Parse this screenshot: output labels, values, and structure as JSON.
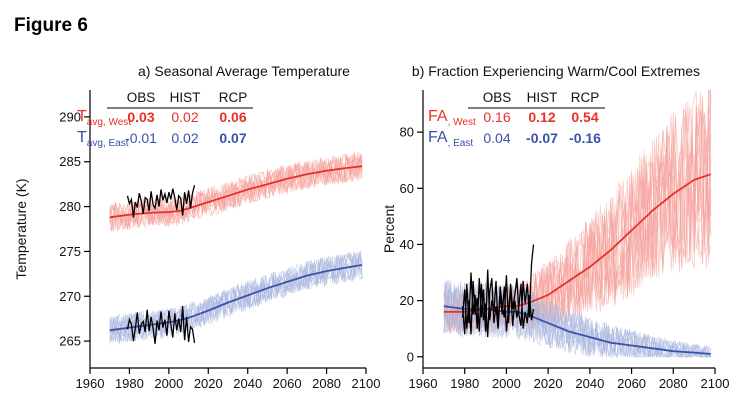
{
  "figure_label": "Figure 6",
  "colors": {
    "west": "#e8302a",
    "east": "#3a52a8",
    "obs": "#000000",
    "west_light": "#f5a09a",
    "east_light": "#a9b6df"
  },
  "chart_data": [
    {
      "type": "line",
      "title": "a) Seasonal Average Temperature",
      "xlabel": "",
      "ylabel": "Temperature (K)",
      "xlim": [
        1960,
        2100
      ],
      "ylim": [
        262,
        293
      ],
      "xticks": [
        1960,
        1980,
        2000,
        2020,
        2040,
        2060,
        2080,
        2100
      ],
      "yticks": [
        265,
        270,
        275,
        280,
        285,
        290
      ],
      "grid": false,
      "table": {
        "headers": [
          "OBS",
          "HIST",
          "RCP"
        ],
        "rows": [
          {
            "label_main": "T",
            "label_sub": "avg, West",
            "color": "west",
            "values": [
              "0.03",
              "0.02",
              "0.06"
            ],
            "bold": [
              true,
              false,
              true
            ]
          },
          {
            "label_main": "T",
            "label_sub": "avg, East",
            "color": "east",
            "values": [
              "-0.01",
              "0.02",
              "0.07"
            ],
            "bold": [
              false,
              false,
              true
            ]
          }
        ]
      },
      "series": [
        {
          "color": "west",
          "style": "ensemble-mean",
          "x": [
            1970,
            1980,
            1990,
            2000,
            2005,
            2010,
            2020,
            2030,
            2040,
            2050,
            2060,
            2070,
            2080,
            2090,
            2098
          ],
          "y": [
            278.8,
            279.1,
            279.3,
            279.4,
            279.5,
            279.8,
            280.5,
            281.2,
            281.9,
            282.5,
            283.1,
            283.6,
            284.0,
            284.3,
            284.5
          ]
        },
        {
          "color": "east",
          "style": "ensemble-mean",
          "x": [
            1970,
            1980,
            1990,
            2000,
            2005,
            2010,
            2020,
            2030,
            2040,
            2050,
            2060,
            2070,
            2080,
            2090,
            2098
          ],
          "y": [
            266.2,
            266.5,
            266.8,
            267.1,
            267.3,
            267.6,
            268.4,
            269.3,
            270.1,
            270.9,
            271.6,
            272.3,
            272.8,
            273.2,
            273.5
          ]
        },
        {
          "color": "obs",
          "style": "observed",
          "x": [
            1979,
            1980,
            1981,
            1982,
            1983,
            1984,
            1985,
            1986,
            1987,
            1988,
            1989,
            1990,
            1991,
            1992,
            1993,
            1994,
            1995,
            1996,
            1997,
            1998,
            1999,
            2000,
            2001,
            2002,
            2003,
            2004,
            2005,
            2006,
            2007,
            2008,
            2009,
            2010,
            2011,
            2012,
            2013
          ],
          "y": [
            281.2,
            280.3,
            280.8,
            278.8,
            280.5,
            279.9,
            281.5,
            280.6,
            279.2,
            281.0,
            280.8,
            279.5,
            281.7,
            280.2,
            279.8,
            281.3,
            280.0,
            281.9,
            280.7,
            281.4,
            280.4,
            281.6,
            280.8,
            282.0,
            281.0,
            279.6,
            281.2,
            280.9,
            279.0,
            281.6,
            280.3,
            281.8,
            279.8,
            281.5,
            282.4
          ]
        },
        {
          "color": "obs",
          "style": "observed",
          "x": [
            1979,
            1980,
            1981,
            1982,
            1983,
            1984,
            1985,
            1986,
            1987,
            1988,
            1989,
            1990,
            1991,
            1992,
            1993,
            1994,
            1995,
            1996,
            1997,
            1998,
            1999,
            2000,
            2001,
            2002,
            2003,
            2004,
            2005,
            2006,
            2007,
            2008,
            2009,
            2010,
            2011,
            2012,
            2013
          ],
          "y": [
            266.3,
            267.4,
            266.9,
            265.0,
            266.4,
            268.2,
            265.8,
            266.9,
            267.2,
            266.0,
            268.5,
            266.1,
            267.7,
            266.4,
            264.7,
            267.3,
            266.2,
            268.3,
            266.5,
            267.4,
            265.6,
            268.4,
            266.9,
            265.4,
            268.1,
            266.2,
            267.5,
            266.0,
            268.9,
            265.1,
            267.7,
            264.9,
            266.6,
            266.3,
            264.8
          ]
        }
      ]
    },
    {
      "type": "line",
      "title": "b) Fraction Experiencing Warm/Cool Extremes",
      "xlabel": "",
      "ylabel": "Percent",
      "xlim": [
        1960,
        2100
      ],
      "ylim": [
        -4,
        95
      ],
      "xticks": [
        1960,
        1980,
        2000,
        2020,
        2040,
        2060,
        2080,
        2100
      ],
      "yticks": [
        0,
        20,
        40,
        60,
        80
      ],
      "grid": false,
      "table": {
        "headers": [
          "OBS",
          "HIST",
          "RCP"
        ],
        "rows": [
          {
            "label_main": "FA",
            "label_sub": ", West",
            "color": "west",
            "values": [
              "0.16",
              "0.12",
              "0.54"
            ],
            "bold": [
              false,
              true,
              true
            ]
          },
          {
            "label_main": "FA",
            "label_sub": ", East",
            "color": "east",
            "values": [
              "0.04",
              "-0.07",
              "-0.16"
            ],
            "bold": [
              false,
              true,
              true
            ]
          }
        ]
      },
      "series": [
        {
          "color": "west",
          "style": "ensemble-mean",
          "x": [
            1970,
            1980,
            1990,
            2000,
            2005,
            2010,
            2020,
            2030,
            2040,
            2050,
            2060,
            2070,
            2080,
            2090,
            2098
          ],
          "y": [
            16,
            16,
            17,
            18,
            18,
            19,
            22,
            27,
            32,
            38,
            45,
            52,
            58,
            63,
            65
          ]
        },
        {
          "color": "east",
          "style": "ensemble-mean",
          "x": [
            1970,
            1980,
            1990,
            2000,
            2005,
            2010,
            2020,
            2030,
            2040,
            2050,
            2060,
            2070,
            2080,
            2090,
            2098
          ],
          "y": [
            18,
            17,
            17,
            16,
            16,
            15,
            12,
            9,
            7,
            5,
            4,
            3,
            2,
            1.5,
            1
          ]
        },
        {
          "color": "obs",
          "style": "observed",
          "x": [
            1979,
            1980,
            1981,
            1982,
            1983,
            1984,
            1985,
            1986,
            1987,
            1988,
            1989,
            1990,
            1991,
            1992,
            1993,
            1994,
            1995,
            1996,
            1997,
            1998,
            1999,
            2000,
            2001,
            2002,
            2003,
            2004,
            2005,
            2006,
            2007,
            2008,
            2009,
            2010,
            2011,
            2012,
            2013
          ],
          "y": [
            18,
            8,
            26,
            12,
            30,
            15,
            22,
            10,
            28,
            14,
            24,
            9,
            31,
            13,
            20,
            16,
            27,
            11,
            25,
            18,
            14,
            29,
            12,
            26,
            17,
            22,
            28,
            15,
            11,
            27,
            19,
            26,
            14,
            33,
            40
          ]
        },
        {
          "color": "obs",
          "style": "observed",
          "x": [
            1979,
            1980,
            1981,
            1982,
            1983,
            1984,
            1985,
            1986,
            1987,
            1988,
            1989,
            1990,
            1991,
            1992,
            1993,
            1994,
            1995,
            1996,
            1997,
            1998,
            1999,
            2000,
            2001,
            2002,
            2003,
            2004,
            2005,
            2006,
            2007,
            2008,
            2009,
            2010,
            2011,
            2012,
            2013
          ],
          "y": [
            14,
            24,
            10,
            20,
            8,
            27,
            15,
            21,
            9,
            26,
            13,
            19,
            7,
            23,
            28,
            12,
            18,
            10,
            22,
            15,
            25,
            9,
            17,
            24,
            11,
            20,
            14,
            18,
            26,
            10,
            16,
            12,
            22,
            13,
            17
          ]
        }
      ]
    }
  ]
}
